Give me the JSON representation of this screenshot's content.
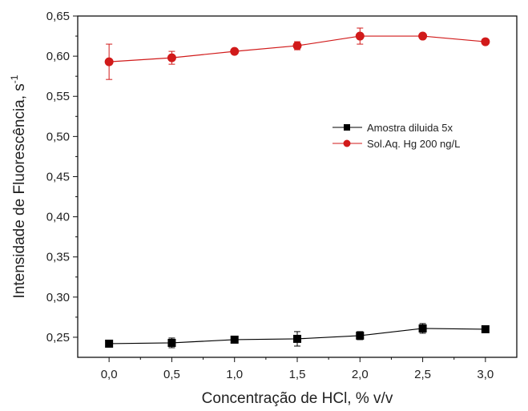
{
  "chart_data": {
    "type": "line",
    "title": "",
    "xlabel": "Concentração de HCl, % v/v",
    "ylabel": "Intensidade de Fluorescência, s",
    "ylabel_superscript": "-1",
    "xlim": [
      -0.25,
      3.25
    ],
    "ylim": [
      0.225,
      0.65
    ],
    "x_ticks": [
      0.0,
      0.5,
      1.0,
      1.5,
      2.0,
      2.5,
      3.0
    ],
    "x_tick_labels": [
      "0,0",
      "0,5",
      "1,0",
      "1,5",
      "2,0",
      "2,5",
      "3,0"
    ],
    "y_ticks": [
      0.25,
      0.3,
      0.35,
      0.4,
      0.45,
      0.5,
      0.55,
      0.6,
      0.65
    ],
    "y_tick_labels": [
      "0,25",
      "0,30",
      "0,35",
      "0,40",
      "0,45",
      "0,50",
      "0,55",
      "0,60",
      "0,65"
    ],
    "x": [
      0.0,
      0.5,
      1.0,
      1.5,
      2.0,
      2.5,
      3.0
    ],
    "series": [
      {
        "name": "Amostra diluida 5x",
        "color": "#000000",
        "marker": "square",
        "values": [
          0.242,
          0.243,
          0.247,
          0.248,
          0.252,
          0.261,
          0.26
        ],
        "errors": [
          0.002,
          0.006,
          0.003,
          0.009,
          0.005,
          0.006,
          0.003
        ]
      },
      {
        "name": "Sol.Aq. Hg 200 ng/L",
        "color": "#d11a1a",
        "marker": "circle",
        "values": [
          0.593,
          0.598,
          0.606,
          0.613,
          0.625,
          0.625,
          0.618
        ],
        "errors": [
          0.022,
          0.008,
          0.003,
          0.005,
          0.01,
          0.003,
          0.003
        ]
      }
    ],
    "legend_position": "upper-right-inside",
    "grid": false
  }
}
